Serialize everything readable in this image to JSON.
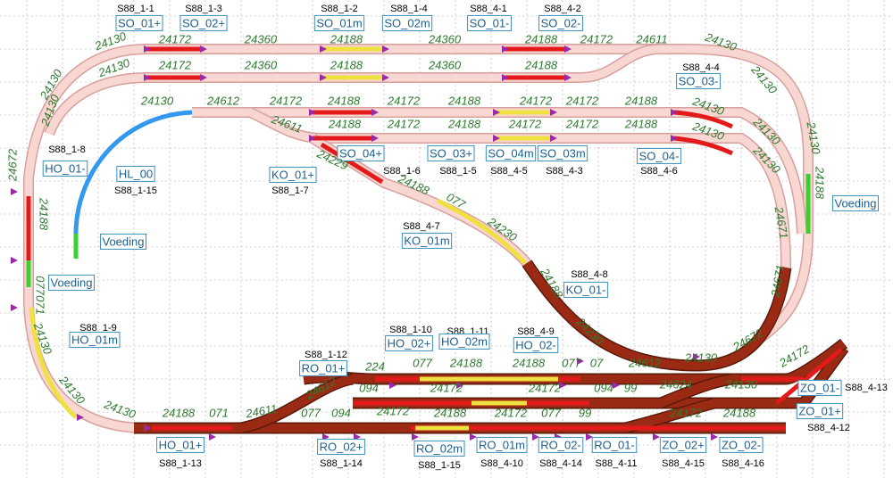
{
  "sensors": [
    "S88_1-1",
    "S88_1-3",
    "S88_1-2",
    "S88_1-4",
    "S88_4-1",
    "S88_4-2",
    "S88_4-4",
    "S88_1-8",
    "S88_1-15",
    "S88_1-6",
    "S88_1-5",
    "S88_4-5",
    "S88_4-3",
    "S88_4-6",
    "S88_1-7",
    "S88_4-7",
    "S88_4-8",
    "S88_1-9",
    "S88_1-10",
    "S88_1-11",
    "S88_4-9",
    "S88_1-12",
    "S88_4-13",
    "S88_4-12",
    "S88_1-13",
    "S88_1-14",
    "S88_1-15",
    "S88_4-10",
    "S88_4-14",
    "S88_4-11",
    "S88_4-15",
    "S88_4-16"
  ],
  "blocks": [
    "SO_01+",
    "SO_02+",
    "SO_01m",
    "SO_02m",
    "SO_01-",
    "SO_02-",
    "SO_03-",
    "SO_04+",
    "SO_03+",
    "SO_04m",
    "SO_03m",
    "SO_04-",
    "HO_01-",
    "HL_00",
    "KO_01+",
    "KO_01m",
    "KO_01-",
    "HO_01m",
    "HO_02+",
    "HO_02m",
    "HO_02-",
    "RO_01+",
    "ZO_01-",
    "ZO_01+",
    "HO_01+",
    "RO_02+",
    "RO_02m",
    "RO_01m",
    "RO_02-",
    "RO_01-",
    "ZO_02+",
    "ZO_02-"
  ],
  "feeds": [
    "Voeding",
    "Voeding",
    "Voeding"
  ],
  "track_numbers": [
    "24130",
    "24172",
    "24360",
    "24188",
    "24360",
    "24188",
    "24172",
    "24611",
    "24130",
    "24130",
    "24172",
    "24360",
    "24188",
    "24360",
    "24188",
    "24130",
    "24130",
    "24130",
    "24612",
    "24172",
    "24188",
    "24172",
    "24188",
    "24172",
    "24172",
    "24188",
    "24130",
    "24130",
    "24611",
    "24188",
    "24172",
    "24188",
    "24172",
    "24172",
    "24188",
    "24130",
    "24130",
    "24130",
    "24130",
    "24188",
    "24671",
    "24671",
    "24672",
    "24188",
    "077",
    "071",
    "24130",
    "24130",
    "24130",
    "24229",
    "24188",
    "077",
    "24230",
    "24188",
    "24230",
    "24612",
    "24130",
    "24672",
    "24172",
    "24130",
    "24624",
    "224",
    "077",
    "24188",
    "24188",
    "077",
    "07",
    "24612",
    "094",
    "24172",
    "24172",
    "094",
    "99",
    "24611",
    "071",
    "24188",
    "077",
    "094",
    "24172",
    "24188",
    "24172",
    "077",
    "99",
    "24172",
    "24188"
  ]
}
